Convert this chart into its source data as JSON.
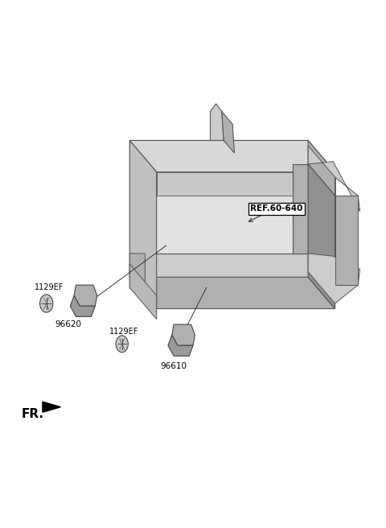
{
  "bg_color": "#ffffff",
  "fig_width": 4.8,
  "fig_height": 6.56,
  "dpi": 100,
  "ref_label": "REF.60-640",
  "part_96620_label": "96620",
  "part_96610_label": "96610",
  "bolt_label": "1129EF",
  "fr_label": "FR.",
  "text_color": "#000000",
  "gray_light": "#cccccc",
  "gray_mid": "#b0b0b0",
  "gray_dark": "#909090",
  "gray_inner": "#e2e2e2",
  "edge_color": "#555555"
}
